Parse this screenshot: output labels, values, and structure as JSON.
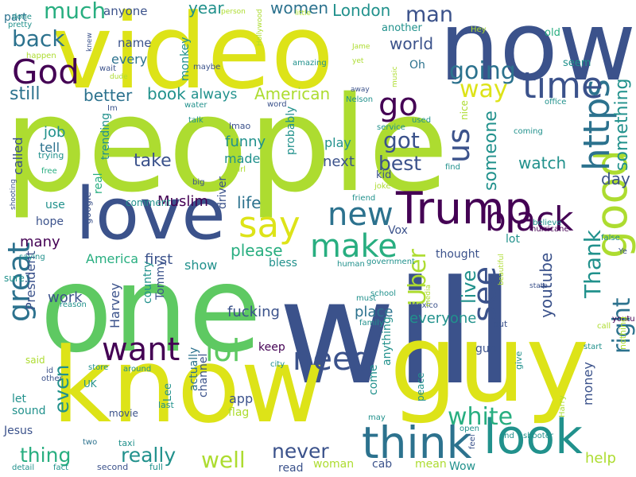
{
  "colors": {
    "purple": "#440154",
    "indigo": "#3b528b",
    "blue": "#2c728e",
    "teal": "#21918c",
    "green": "#28ae80",
    "lightgreen": "#5ec962",
    "lime": "#addc30",
    "yellow": "#dde318",
    "background": "#ffffff"
  },
  "words": [
    "people",
    "will",
    "one",
    "guy",
    "know",
    "video",
    "now",
    "love",
    "Trump",
    "think",
    "look",
    "good",
    "want",
    "https",
    "black",
    "make",
    "new",
    "time",
    "say",
    "need",
    "go",
    "lol",
    "God",
    "great",
    "us",
    "Uber",
    "see",
    "white",
    "right",
    "Thank",
    "much",
    "going",
    "way",
    "something",
    "youtube",
    "got",
    "really",
    "well",
    "thing",
    "never",
    "back",
    "watch",
    "someone",
    "best",
    "even",
    "take",
    "please",
    "live",
    "world",
    "man",
    "women",
    "American",
    "London",
    "book",
    "still",
    "life",
    "day",
    "year",
    "money",
    "help",
    "fucking",
    "funny",
    "made",
    "next",
    "play",
    "place",
    "everyone",
    "keep",
    "app",
    "America",
    "first",
    "show",
    "Muslim",
    "President",
    "actually",
    "work",
    "Harvey",
    "country",
    "Tommy",
    "job",
    "tell",
    "called",
    "better",
    "always",
    "anyone",
    "name",
    "every",
    "monkey",
    "part",
    "done",
    "pretty",
    "happen",
    "Oh",
    "another",
    "Jame",
    "yet",
    "amazing",
    "music",
    "nice",
    "used",
    "service",
    "coming",
    "office",
    "hurricane",
    "false",
    "believe",
    "friend",
    "driver",
    "trending",
    "google",
    "real",
    "comment",
    "hope",
    "many",
    "use",
    "bless",
    "lot",
    "Vox",
    "thought",
    "human",
    "government",
    "school",
    "must",
    "Mexico",
    "media",
    "beautiful",
    "state",
    "call",
    "start",
    "Ye",
    "youtu",
    "nothing",
    "put",
    "give",
    "peace",
    "gun",
    "anything",
    "come",
    "sound",
    "let",
    "Jesus",
    "UK",
    "other",
    "id",
    "said",
    "store",
    "around",
    "city",
    "sure",
    "saying",
    "reason",
    "family",
    "flag",
    "movie",
    "taxi",
    "Lee",
    "channel",
    "last",
    "may",
    "open",
    "end",
    "shooter",
    "Harry",
    "feel",
    "cab",
    "mean",
    "Wow",
    "woman",
    "read",
    "second",
    "full",
    "fact",
    "detail",
    "two",
    "Hollywood",
    "person",
    "little",
    "Hey",
    "old",
    "seem",
    "knew",
    "wait",
    "dude",
    "maybe",
    "Im",
    "water",
    "word",
    "away",
    "Nelson",
    "talk",
    "lmao",
    "girl",
    "big",
    "free",
    "trying",
    "joke",
    "kid",
    "find",
    "shooting",
    "probably"
  ]
}
